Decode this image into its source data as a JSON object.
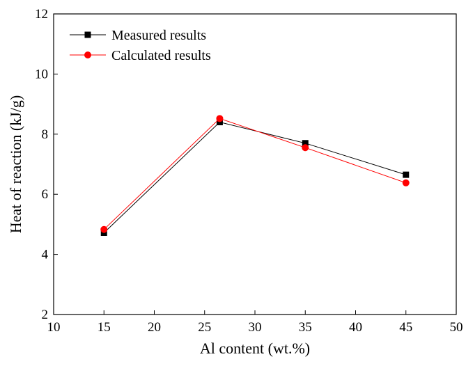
{
  "chart_data": {
    "type": "line",
    "title": "",
    "xlabel": "Al content (wt.%)",
    "ylabel": "Heat of reaction (kJ/g)",
    "xlim": [
      10,
      50
    ],
    "ylim": [
      2,
      12
    ],
    "xticks": [
      10,
      15,
      20,
      25,
      30,
      35,
      40,
      45,
      50
    ],
    "yticks": [
      2,
      4,
      6,
      8,
      10,
      12
    ],
    "grid": false,
    "legend_position": "top-left",
    "series": [
      {
        "name": "Measured results",
        "marker": "square",
        "color": "#000000",
        "x": [
          15,
          26.5,
          35,
          45
        ],
        "y": [
          4.72,
          8.4,
          7.7,
          6.65
        ]
      },
      {
        "name": "Calculated results",
        "marker": "circle",
        "color": "#ff0000",
        "x": [
          15,
          26.5,
          35,
          45
        ],
        "y": [
          4.83,
          8.52,
          7.55,
          6.38
        ]
      }
    ]
  }
}
